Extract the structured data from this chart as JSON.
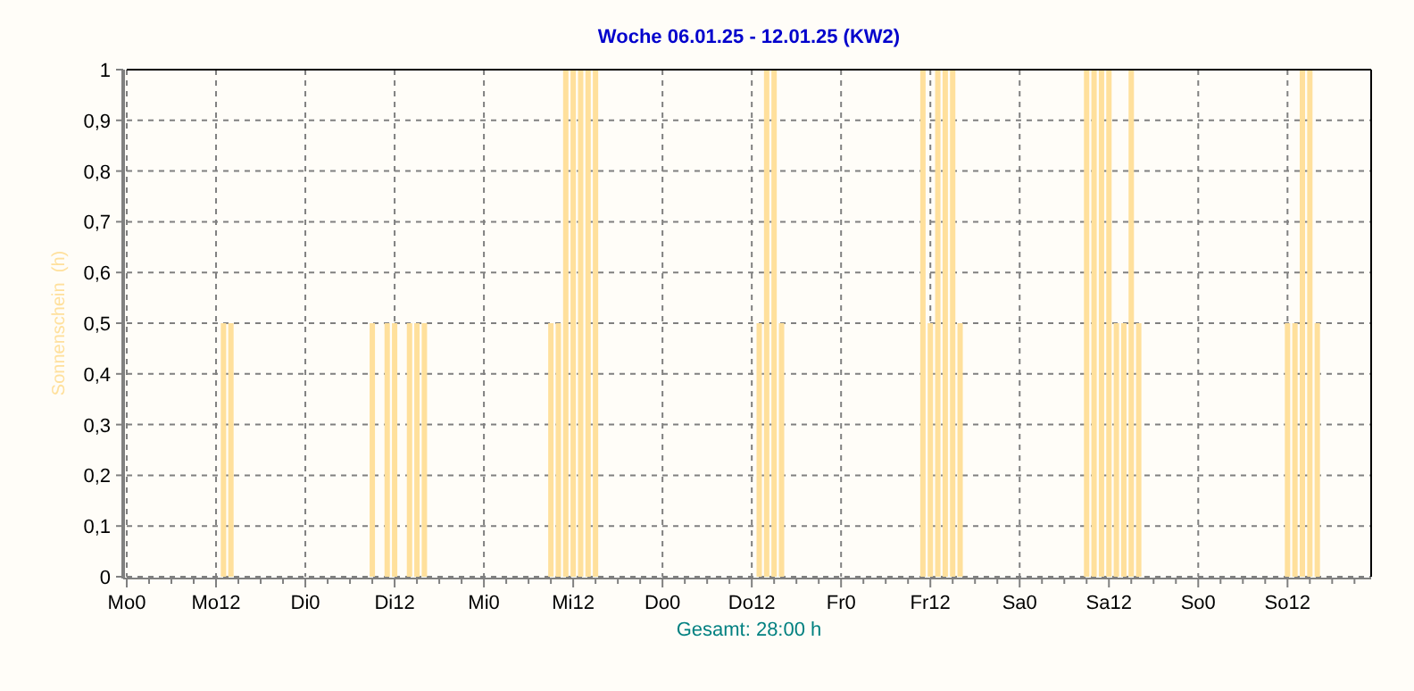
{
  "chart_data": {
    "type": "bar",
    "title": "Woche 06.01.25 - 12.01.25 (KW2)",
    "xlabel": "Gesamt: 28:00 h",
    "ylabel": "Sonnenschein  (h)",
    "color": "#ffe09c",
    "categories": [
      "Mo0",
      null,
      null,
      null,
      null,
      null,
      null,
      null,
      null,
      null,
      null,
      null,
      "Mo12",
      null,
      null,
      null,
      null,
      null,
      null,
      null,
      null,
      null,
      null,
      null,
      "Di0",
      null,
      null,
      null,
      null,
      null,
      null,
      null,
      null,
      null,
      null,
      null,
      "Di12",
      null,
      null,
      null,
      null,
      null,
      null,
      null,
      null,
      null,
      null,
      null,
      "Mi0",
      null,
      null,
      null,
      null,
      null,
      null,
      null,
      null,
      null,
      null,
      null,
      "Mi12",
      null,
      null,
      null,
      null,
      null,
      null,
      null,
      null,
      null,
      null,
      null,
      "Do0",
      null,
      null,
      null,
      null,
      null,
      null,
      null,
      null,
      null,
      null,
      null,
      "Do12",
      null,
      null,
      null,
      null,
      null,
      null,
      null,
      null,
      null,
      null,
      null,
      "Fr0",
      null,
      null,
      null,
      null,
      null,
      null,
      null,
      null,
      null,
      null,
      null,
      "Fr12",
      null,
      null,
      null,
      null,
      null,
      null,
      null,
      null,
      null,
      null,
      null,
      "Sa0",
      null,
      null,
      null,
      null,
      null,
      null,
      null,
      null,
      null,
      null,
      null,
      "Sa12",
      null,
      null,
      null,
      null,
      null,
      null,
      null,
      null,
      null,
      null,
      null,
      "So0",
      null,
      null,
      null,
      null,
      null,
      null,
      null,
      null,
      null,
      null,
      null,
      "So12",
      null,
      null,
      null,
      null,
      null,
      null,
      null,
      null,
      null,
      null,
      null
    ],
    "values": [
      0,
      0,
      0,
      0,
      0,
      0,
      0,
      0,
      0,
      0,
      0,
      0,
      0,
      0.5,
      0.5,
      0,
      0,
      0,
      0,
      0,
      0,
      0,
      0,
      0,
      0,
      0,
      0,
      0,
      0,
      0,
      0,
      0,
      0,
      0.5,
      0,
      0.5,
      0.5,
      0,
      0.5,
      0.5,
      0.5,
      0,
      0,
      0,
      0,
      0,
      0,
      0,
      0,
      0,
      0,
      0,
      0,
      0,
      0,
      0,
      0,
      0.5,
      0.5,
      1,
      1,
      1,
      1,
      1,
      0,
      0,
      0,
      0,
      0,
      0,
      0,
      0,
      0,
      0,
      0,
      0,
      0,
      0,
      0,
      0,
      0,
      0,
      0,
      0,
      0,
      0.5,
      1,
      1,
      0.5,
      0,
      0,
      0,
      0,
      0,
      0,
      0,
      0,
      0,
      0,
      0,
      0,
      0,
      0,
      0,
      0,
      0,
      0,
      1,
      0.5,
      1,
      1,
      1,
      0.5,
      0,
      0,
      0,
      0,
      0,
      0,
      0,
      0,
      0,
      0,
      0,
      0,
      0,
      0,
      0,
      0,
      1,
      1,
      1,
      1,
      0.5,
      0.5,
      1,
      0.5,
      0,
      0,
      0,
      0,
      0,
      0,
      0,
      0,
      0,
      0,
      0,
      0,
      0,
      0,
      0,
      0,
      0,
      0,
      0,
      0.5,
      0.5,
      1,
      1,
      0.5,
      0,
      0,
      0,
      0,
      0,
      0,
      0
    ],
    "ylim": [
      0,
      1
    ],
    "yticks": [
      {
        "value": 0,
        "label": "0"
      },
      {
        "value": 0.1,
        "label": "0,1"
      },
      {
        "value": 0.2,
        "label": "0,2"
      },
      {
        "value": 0.3,
        "label": "0,3"
      },
      {
        "value": 0.4,
        "label": "0,4"
      },
      {
        "value": 0.5,
        "label": "0,5"
      },
      {
        "value": 0.6,
        "label": "0,6"
      },
      {
        "value": 0.7,
        "label": "0,7"
      },
      {
        "value": 0.8,
        "label": "0,8"
      },
      {
        "value": 0.9,
        "label": "0,9"
      },
      {
        "value": 1,
        "label": "1"
      }
    ],
    "grid": true
  }
}
